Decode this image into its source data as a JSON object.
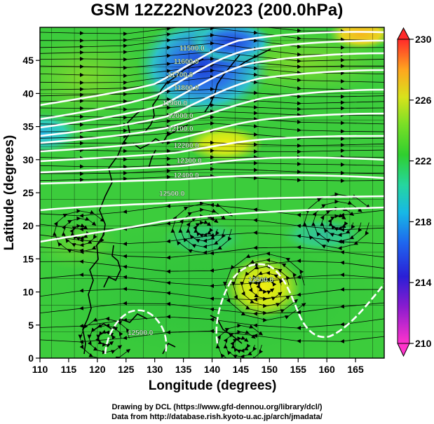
{
  "title": "GSM 12Z22Nov2023 (200.0hPa)",
  "x_axis": {
    "label": "Longitude (degrees)",
    "ticks": [
      "110",
      "115",
      "120",
      "125",
      "130",
      "135",
      "140",
      "145",
      "150",
      "155",
      "160",
      "165"
    ]
  },
  "y_axis": {
    "label": "Latitude  (degrees)",
    "ticks": [
      "0",
      "5",
      "10",
      "15",
      "20",
      "25",
      "30",
      "35",
      "40",
      "45"
    ]
  },
  "colorbar": {
    "ticks": [
      "210",
      "214",
      "218",
      "222",
      "226",
      "230"
    ],
    "min": 210,
    "max": 230
  },
  "contour_labels": [
    {
      "text": "11500.0",
      "lon": 136.5,
      "lat": 46.5
    },
    {
      "text": "11600.0",
      "lon": 135.5,
      "lat": 44.5
    },
    {
      "text": "11700.0",
      "lon": 134.5,
      "lat": 42.5
    },
    {
      "text": "11800.0",
      "lon": 135.5,
      "lat": 40.5
    },
    {
      "text": "11900.0",
      "lon": 133.5,
      "lat": 38.2
    },
    {
      "text": "12000.0",
      "lon": 134.5,
      "lat": 36.3
    },
    {
      "text": "12100.0",
      "lon": 134.5,
      "lat": 34.3
    },
    {
      "text": "12200.0",
      "lon": 135.5,
      "lat": 31.8
    },
    {
      "text": "12300.0",
      "lon": 136.0,
      "lat": 29.5
    },
    {
      "text": "12400.0",
      "lon": 135.5,
      "lat": 27.3
    },
    {
      "text": "12500.0",
      "lon": 133.0,
      "lat": 24.5
    },
    {
      "text": "12500.0",
      "lon": 148.5,
      "lat": 11.5
    },
    {
      "text": "12500.0",
      "lon": 127.5,
      "lat": 3.5
    }
  ],
  "credits": {
    "line1": "Drawing by DCL (https://www.gfd-dennou.org/library/dcl/)",
    "line2": "Data from http://database.rish.kyoto-u.ac.jp/arch/jmadata/"
  },
  "colors": {
    "field_base": "#3ccc3c",
    "contour": "#ffffff",
    "coast": "#000000",
    "streamline": "#000000"
  }
}
